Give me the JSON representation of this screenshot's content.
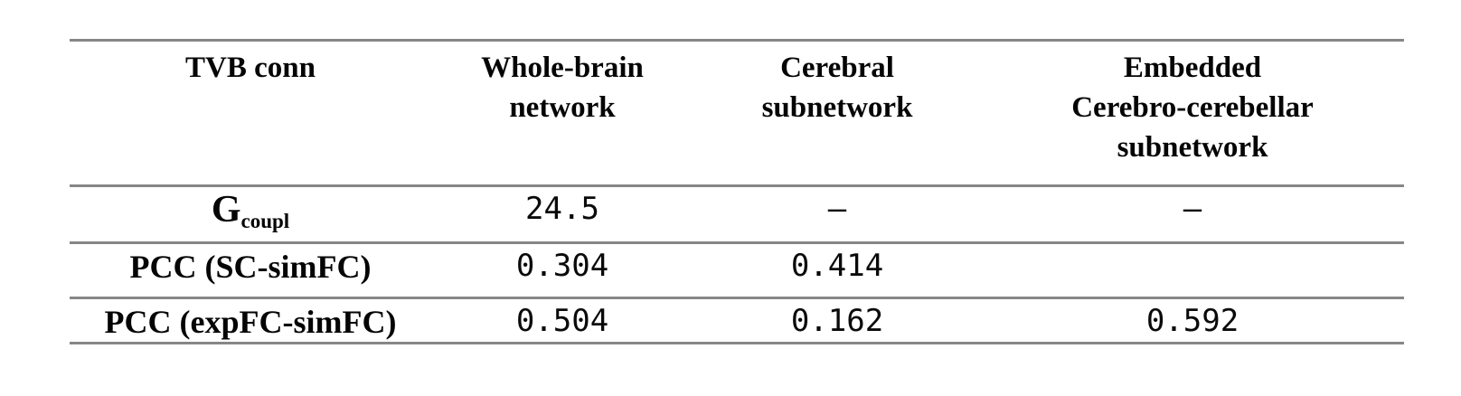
{
  "style": {
    "rule_color": "#878787",
    "background": "#ffffff",
    "text_color": "#000000"
  },
  "table": {
    "columns": [
      "TVB conn",
      "Whole-brain\nnetwork",
      "Cerebral\nsubnetwork",
      "Embedded\nCerebro-cerebellar\nsubnetwork"
    ],
    "rows": [
      {
        "label_main": "G",
        "label_sub": "coupl",
        "values": [
          "24.5",
          "–",
          "–"
        ]
      },
      {
        "label": "PCC (SC-simFC)",
        "values": [
          "0.304",
          "0.414",
          ""
        ]
      },
      {
        "label": "PCC (expFC-simFC)",
        "values": [
          "0.504",
          "0.162",
          "0.592"
        ]
      }
    ]
  },
  "chart_data": {
    "type": "table",
    "title": "TVB conn",
    "columns": [
      "TVB conn",
      "Whole-brain network",
      "Cerebral subnetwork",
      "Embedded Cerebro-cerebellar subnetwork"
    ],
    "rows": [
      [
        "Gcoupl",
        "24.5",
        "–",
        "–"
      ],
      [
        "PCC (SC-simFC)",
        "0.304",
        "0.414",
        ""
      ],
      [
        "PCC (expFC-simFC)",
        "0.504",
        "0.162",
        "0.592"
      ]
    ]
  }
}
